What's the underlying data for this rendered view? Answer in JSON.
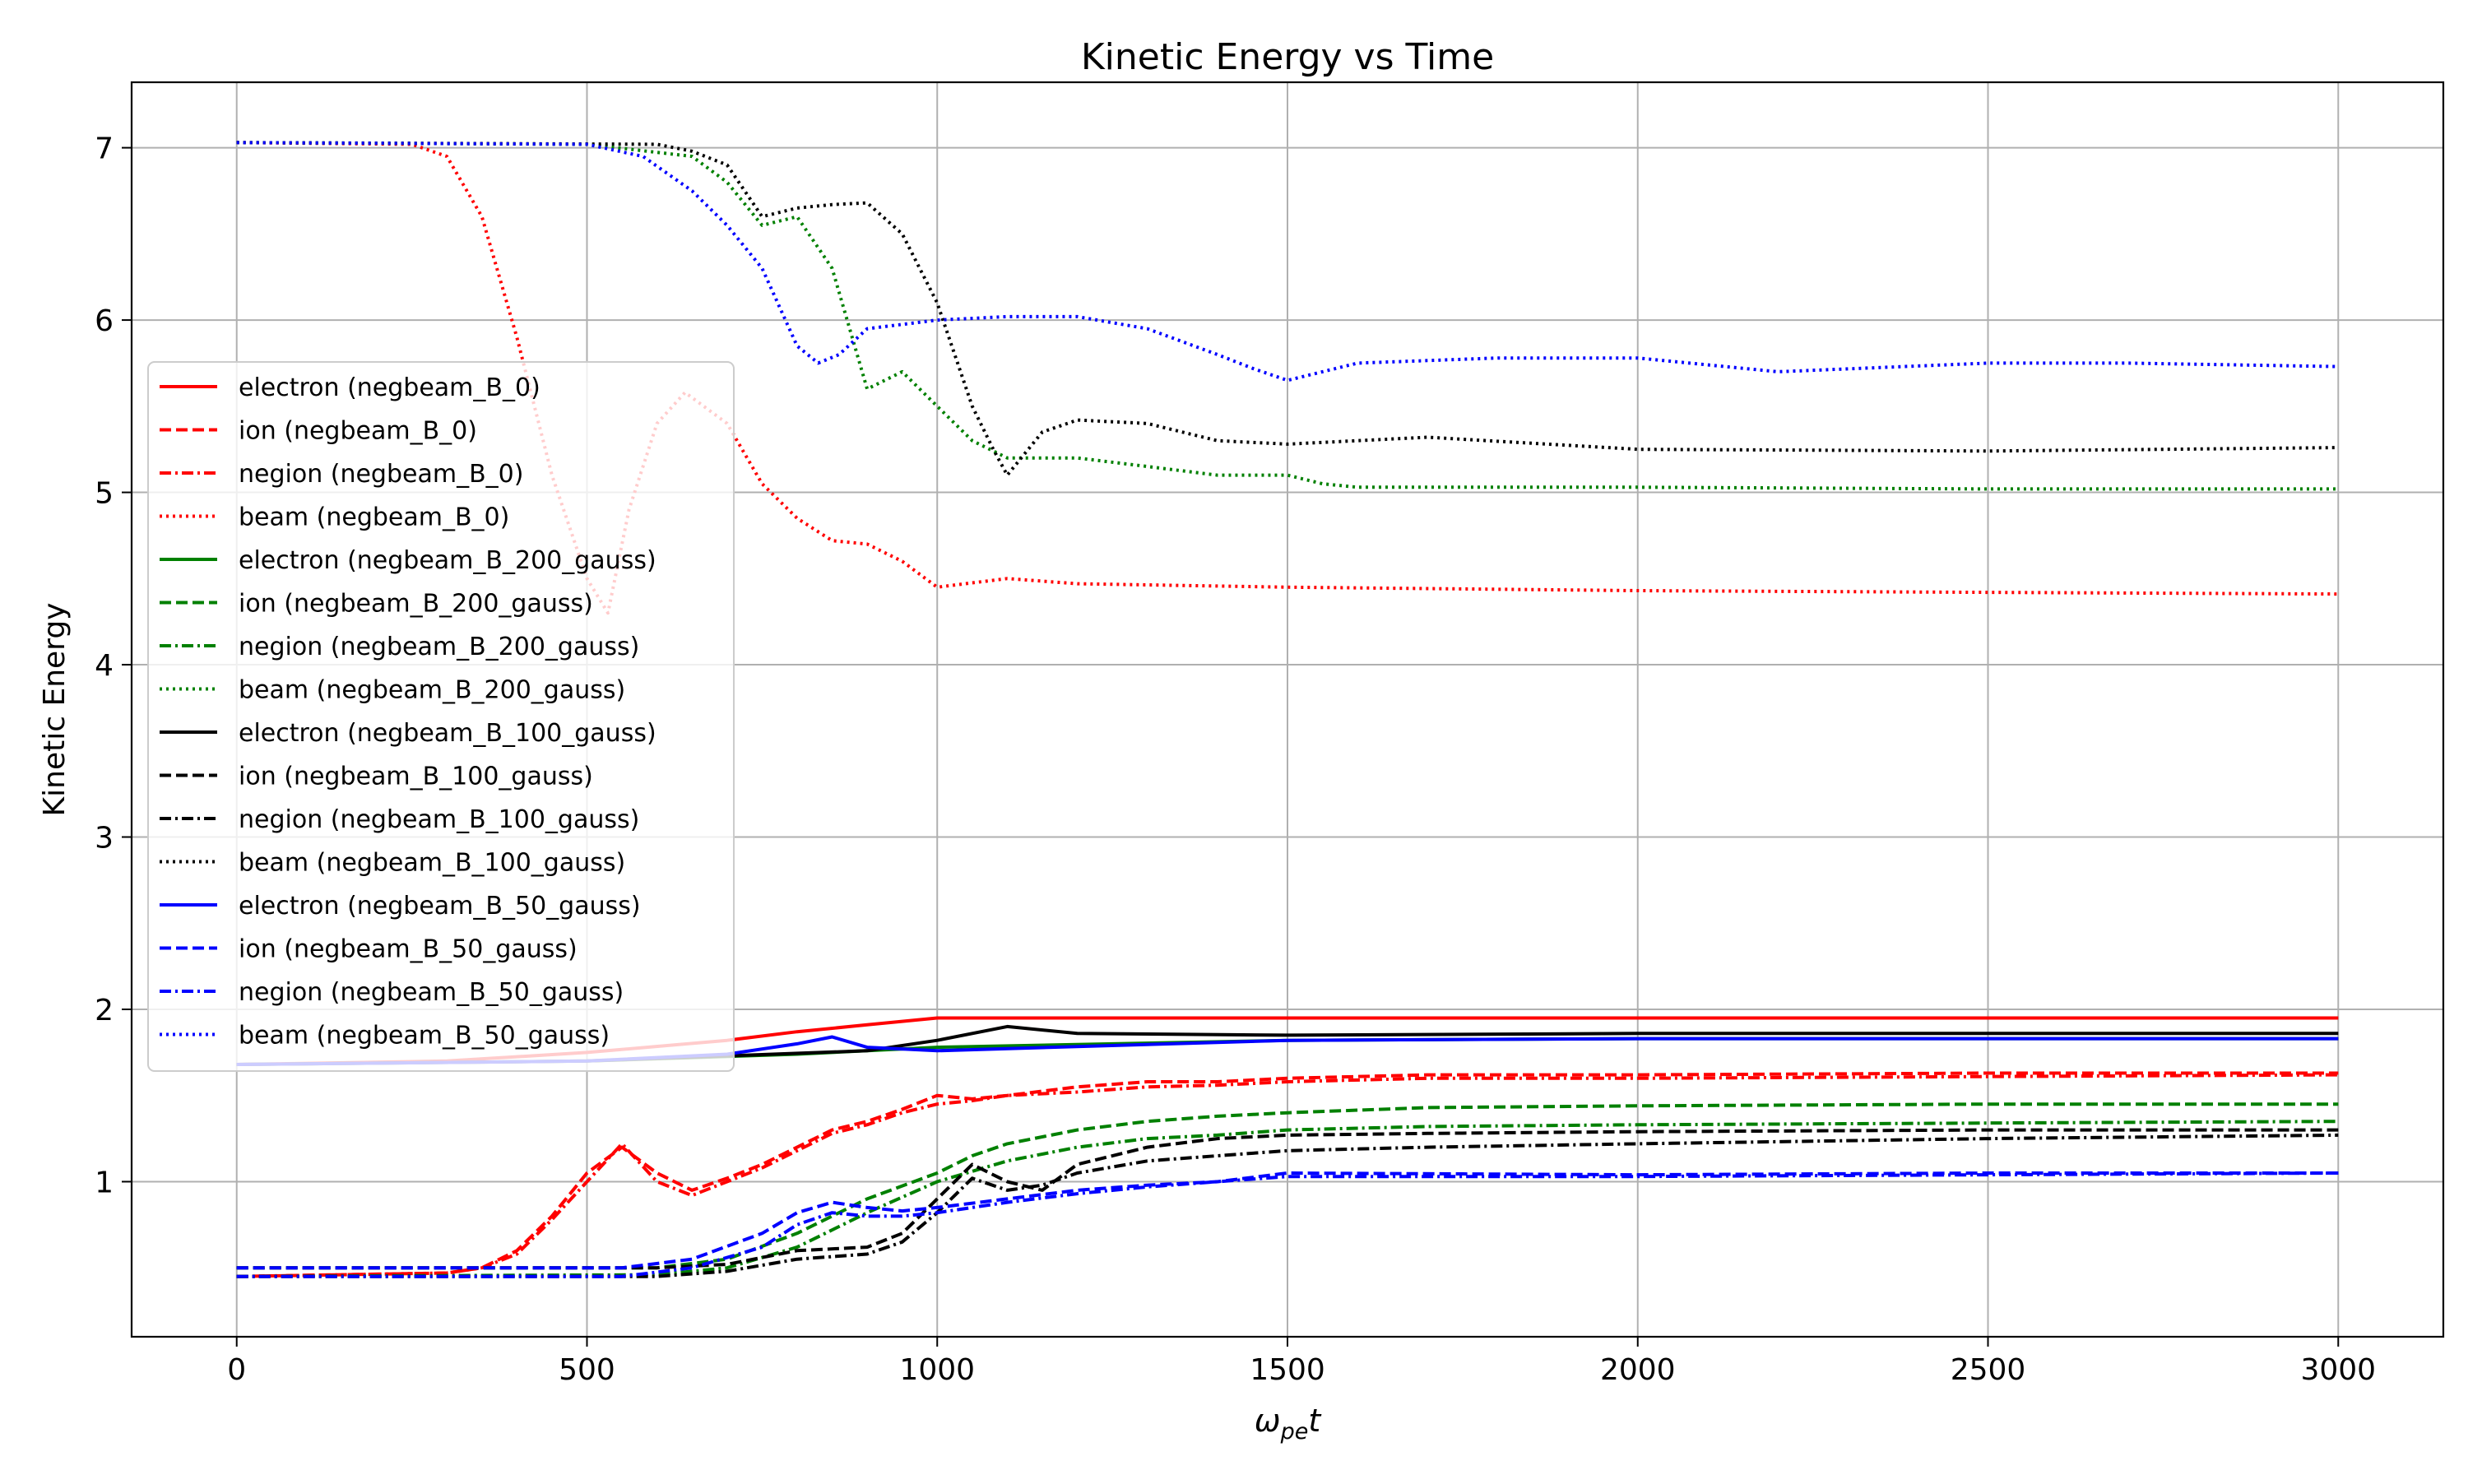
{
  "chart_data": {
    "type": "line",
    "title": "Kinetic Energy vs Time",
    "xlabel_base": "ω",
    "xlabel_sub": "pe",
    "xlabel_tail": "t",
    "ylabel": "Kinetic Energy",
    "xlim": [
      -150,
      3150
    ],
    "ylim": [
      0.1,
      7.38
    ],
    "xticks": [
      0,
      500,
      1000,
      1500,
      2000,
      2500,
      3000
    ],
    "yticks": [
      1,
      2,
      3,
      4,
      5,
      6,
      7
    ],
    "grid": true,
    "legend_position": "center-left",
    "series": [
      {
        "name": "electron (negbeam_B_0)",
        "color": "#ff0000",
        "dash": "solid",
        "x": [
          0,
          300,
          500,
          700,
          800,
          900,
          1000,
          1100,
          1500,
          2000,
          2500,
          3000
        ],
        "y": [
          1.68,
          1.7,
          1.75,
          1.82,
          1.87,
          1.91,
          1.95,
          1.95,
          1.95,
          1.95,
          1.95,
          1.95
        ]
      },
      {
        "name": "ion (negbeam_B_0)",
        "color": "#ff0000",
        "dash": "dashed",
        "x": [
          0,
          300,
          350,
          400,
          450,
          500,
          550,
          600,
          650,
          700,
          750,
          800,
          850,
          900,
          950,
          1000,
          1050,
          1100,
          1200,
          1300,
          1400,
          1500,
          1700,
          2000,
          2500,
          3000
        ],
        "y": [
          0.45,
          0.47,
          0.5,
          0.6,
          0.8,
          1.05,
          1.2,
          1.05,
          0.95,
          1.02,
          1.1,
          1.2,
          1.3,
          1.35,
          1.42,
          1.5,
          1.48,
          1.5,
          1.55,
          1.58,
          1.58,
          1.6,
          1.62,
          1.62,
          1.63,
          1.63
        ]
      },
      {
        "name": "negion (negbeam_B_0)",
        "color": "#ff0000",
        "dash": "dashdot",
        "x": [
          0,
          300,
          350,
          400,
          450,
          500,
          550,
          600,
          650,
          700,
          750,
          800,
          850,
          900,
          950,
          1000,
          1050,
          1100,
          1200,
          1300,
          1400,
          1500,
          1700,
          2000,
          2500,
          3000
        ],
        "y": [
          0.45,
          0.47,
          0.5,
          0.58,
          0.78,
          1.0,
          1.22,
          1.0,
          0.92,
          1.0,
          1.08,
          1.18,
          1.28,
          1.33,
          1.4,
          1.45,
          1.47,
          1.5,
          1.52,
          1.55,
          1.56,
          1.58,
          1.6,
          1.6,
          1.61,
          1.62
        ]
      },
      {
        "name": "beam (negbeam_B_0)",
        "color": "#ff0000",
        "dash": "dotted",
        "x": [
          0,
          250,
          300,
          350,
          400,
          450,
          500,
          530,
          560,
          600,
          640,
          700,
          750,
          800,
          850,
          900,
          950,
          1000,
          1100,
          1200,
          1500,
          2000,
          2500,
          3000
        ],
        "y": [
          7.03,
          7.02,
          6.95,
          6.6,
          5.9,
          5.1,
          4.5,
          4.3,
          4.9,
          5.4,
          5.58,
          5.4,
          5.05,
          4.85,
          4.72,
          4.7,
          4.6,
          4.45,
          4.5,
          4.47,
          4.45,
          4.43,
          4.42,
          4.41
        ]
      },
      {
        "name": "electron (negbeam_B_200_gauss)",
        "color": "#008000",
        "dash": "solid",
        "x": [
          0,
          500,
          800,
          1000,
          1500,
          2000,
          2500,
          3000
        ],
        "y": [
          1.68,
          1.7,
          1.74,
          1.78,
          1.82,
          1.83,
          1.83,
          1.83
        ]
      },
      {
        "name": "ion (negbeam_B_200_gauss)",
        "color": "#008000",
        "dash": "dashed",
        "x": [
          0,
          600,
          700,
          800,
          900,
          1000,
          1050,
          1100,
          1200,
          1300,
          1400,
          1500,
          1700,
          2000,
          2500,
          3000
        ],
        "y": [
          0.5,
          0.5,
          0.55,
          0.7,
          0.9,
          1.05,
          1.15,
          1.22,
          1.3,
          1.35,
          1.38,
          1.4,
          1.43,
          1.44,
          1.45,
          1.45
        ]
      },
      {
        "name": "negion (negbeam_B_200_gauss)",
        "color": "#008000",
        "dash": "dashdot",
        "x": [
          0,
          600,
          700,
          800,
          900,
          1000,
          1100,
          1200,
          1300,
          1400,
          1500,
          1700,
          2000,
          2500,
          3000
        ],
        "y": [
          0.45,
          0.46,
          0.5,
          0.62,
          0.82,
          1.0,
          1.12,
          1.2,
          1.25,
          1.27,
          1.3,
          1.32,
          1.33,
          1.34,
          1.35
        ]
      },
      {
        "name": "beam (negbeam_B_200_gauss)",
        "color": "#008000",
        "dash": "dotted",
        "x": [
          0,
          500,
          650,
          700,
          750,
          800,
          850,
          900,
          950,
          1000,
          1050,
          1100,
          1200,
          1300,
          1400,
          1500,
          1550,
          1600,
          2000,
          2500,
          3000
        ],
        "y": [
          7.03,
          7.02,
          6.95,
          6.8,
          6.55,
          6.6,
          6.3,
          5.6,
          5.7,
          5.5,
          5.3,
          5.2,
          5.2,
          5.15,
          5.1,
          5.1,
          5.05,
          5.03,
          5.03,
          5.02,
          5.02
        ]
      },
      {
        "name": "electron (negbeam_B_100_gauss)",
        "color": "#000000",
        "dash": "solid",
        "x": [
          0,
          500,
          700,
          900,
          1000,
          1100,
          1200,
          1500,
          2000,
          2500,
          3000
        ],
        "y": [
          1.68,
          1.7,
          1.73,
          1.76,
          1.82,
          1.9,
          1.86,
          1.85,
          1.86,
          1.86,
          1.86
        ]
      },
      {
        "name": "ion (negbeam_B_100_gauss)",
        "color": "#000000",
        "dash": "dashed",
        "x": [
          0,
          600,
          700,
          800,
          900,
          950,
          1000,
          1050,
          1100,
          1150,
          1200,
          1300,
          1400,
          1500,
          1700,
          2000,
          2500,
          3000
        ],
        "y": [
          0.5,
          0.5,
          0.52,
          0.6,
          0.62,
          0.7,
          0.9,
          1.1,
          1.0,
          0.95,
          1.1,
          1.2,
          1.25,
          1.27,
          1.28,
          1.29,
          1.3,
          1.3
        ]
      },
      {
        "name": "negion (negbeam_B_100_gauss)",
        "color": "#000000",
        "dash": "dashdot",
        "x": [
          0,
          600,
          700,
          800,
          900,
          950,
          1000,
          1050,
          1100,
          1150,
          1200,
          1300,
          1400,
          1500,
          1700,
          2000,
          2500,
          3000
        ],
        "y": [
          0.45,
          0.45,
          0.48,
          0.55,
          0.58,
          0.65,
          0.82,
          1.02,
          0.95,
          0.98,
          1.05,
          1.12,
          1.15,
          1.18,
          1.2,
          1.22,
          1.25,
          1.27
        ]
      },
      {
        "name": "beam (negbeam_B_100_gauss)",
        "color": "#000000",
        "dash": "dotted",
        "x": [
          0,
          600,
          650,
          700,
          750,
          800,
          850,
          900,
          950,
          1000,
          1050,
          1080,
          1100,
          1150,
          1200,
          1300,
          1400,
          1500,
          1600,
          1700,
          2000,
          2500,
          3000
        ],
        "y": [
          7.03,
          7.02,
          6.98,
          6.9,
          6.6,
          6.65,
          6.67,
          6.68,
          6.5,
          6.1,
          5.5,
          5.25,
          5.1,
          5.35,
          5.42,
          5.4,
          5.3,
          5.28,
          5.3,
          5.32,
          5.25,
          5.24,
          5.26
        ]
      },
      {
        "name": "electron (negbeam_B_50_gauss)",
        "color": "#0000ff",
        "dash": "solid",
        "x": [
          0,
          500,
          700,
          800,
          850,
          900,
          1000,
          1500,
          2000,
          2500,
          3000
        ],
        "y": [
          1.68,
          1.7,
          1.74,
          1.8,
          1.84,
          1.78,
          1.76,
          1.82,
          1.83,
          1.83,
          1.83
        ]
      },
      {
        "name": "ion (negbeam_B_50_gauss)",
        "color": "#0000ff",
        "dash": "dashed",
        "x": [
          0,
          550,
          650,
          750,
          800,
          850,
          900,
          950,
          1000,
          1100,
          1200,
          1300,
          1400,
          1500,
          2000,
          2500,
          3000
        ],
        "y": [
          0.5,
          0.5,
          0.55,
          0.7,
          0.82,
          0.88,
          0.85,
          0.83,
          0.85,
          0.9,
          0.95,
          0.98,
          1.0,
          1.05,
          1.04,
          1.05,
          1.05
        ]
      },
      {
        "name": "negion (negbeam_B_50_gauss)",
        "color": "#0000ff",
        "dash": "dashdot",
        "x": [
          0,
          550,
          650,
          750,
          800,
          850,
          900,
          950,
          1000,
          1100,
          1200,
          1300,
          1400,
          1500,
          2000,
          2500,
          3000
        ],
        "y": [
          0.45,
          0.45,
          0.5,
          0.62,
          0.75,
          0.82,
          0.8,
          0.8,
          0.82,
          0.88,
          0.93,
          0.97,
          1.0,
          1.03,
          1.03,
          1.04,
          1.05
        ]
      },
      {
        "name": "beam (negbeam_B_50_gauss)",
        "color": "#0000ff",
        "dash": "dotted",
        "x": [
          0,
          500,
          580,
          650,
          700,
          750,
          800,
          830,
          860,
          900,
          1000,
          1100,
          1200,
          1300,
          1400,
          1450,
          1500,
          1600,
          1800,
          2000,
          2200,
          2500,
          2700,
          3000
        ],
        "y": [
          7.03,
          7.02,
          6.95,
          6.75,
          6.55,
          6.3,
          5.85,
          5.75,
          5.8,
          5.95,
          6.0,
          6.02,
          6.02,
          5.95,
          5.8,
          5.72,
          5.65,
          5.75,
          5.78,
          5.78,
          5.7,
          5.75,
          5.75,
          5.73
        ]
      }
    ]
  }
}
